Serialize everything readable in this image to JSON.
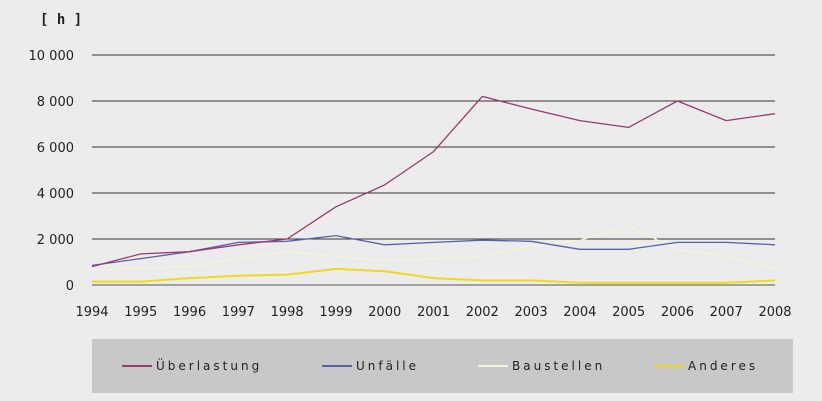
{
  "chart_data": {
    "type": "line",
    "unit_label": "[ h ]",
    "x": [
      "1994",
      "1995",
      "1996",
      "1997",
      "1998",
      "1999",
      "2000",
      "2001",
      "2002",
      "2003",
      "2004",
      "2005",
      "2006",
      "2007",
      "2008"
    ],
    "yticks": [
      "10 000",
      "8 000",
      "6 000",
      "4 000",
      "2 000",
      "0"
    ],
    "ylim": [
      0,
      10000
    ],
    "grid": true,
    "legend_position": "bottom",
    "series": [
      {
        "name": "Überlastung",
        "color": "#9b3a6e",
        "values": [
          800,
          1350,
          1450,
          1750,
          2000,
          3400,
          4350,
          5800,
          8200,
          7650,
          7150,
          6850,
          8000,
          7150,
          7450
        ]
      },
      {
        "name": "Unfälle",
        "color": "#5a5fb0",
        "values": [
          850,
          1150,
          1450,
          1850,
          1900,
          2150,
          1750,
          1850,
          1950,
          1900,
          1550,
          1550,
          1850,
          1850,
          1750
        ]
      },
      {
        "name": "Baustellen",
        "color": "#f5f5d8",
        "values": [
          650,
          750,
          800,
          1150,
          1450,
          1250,
          1050,
          1150,
          1250,
          1700,
          1950,
          2550,
          1550,
          1250,
          700
        ]
      },
      {
        "name": "Anderes",
        "color": "#f2d71e",
        "values": [
          150,
          150,
          300,
          400,
          450,
          700,
          600,
          300,
          200,
          200,
          100,
          100,
          100,
          100,
          200
        ]
      }
    ]
  }
}
